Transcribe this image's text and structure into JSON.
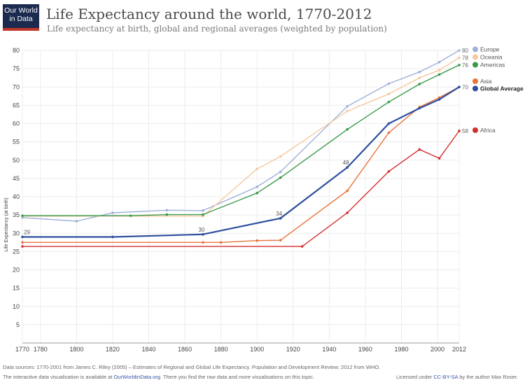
{
  "logo": {
    "line1": "Our World",
    "line2": "in Data"
  },
  "header": {
    "title": "Life Expectancy around the world, 1770-2012",
    "subtitle": "Life expectancy at birth, global and regional averages (weighted by population)"
  },
  "footer": {
    "line1": "Data sources: 1770-2001 from James C. Riley (2005) – Estimates of Regional and Global Life Expectancy. Population and Development Review; 2012 from WHO.",
    "line2_pre": "The interactive data visualisation is available at ",
    "line2_link": "OurWorldinData.org",
    "line2_post": ". There you find the raw data and more visualisations on this topic.",
    "license_pre": "Licensed under ",
    "license_link": "CC-BY-SA",
    "license_post": " by the author Max Roser."
  },
  "chart_data": {
    "type": "line",
    "title": "Life Expectancy around the world, 1770-2012",
    "subtitle": "Life expectancy at birth, global and regional averages (weighted by population)",
    "ylabel": "Life Expectancy (at birth)",
    "xlabel": "",
    "xlim": [
      1770,
      2012
    ],
    "ylim": [
      0,
      80
    ],
    "x_ticks": [
      1770,
      1780,
      1800,
      1820,
      1840,
      1860,
      1880,
      1900,
      1920,
      1940,
      1960,
      1980,
      2000,
      2012
    ],
    "y_ticks": [
      5,
      10,
      15,
      20,
      25,
      30,
      35,
      40,
      45,
      50,
      55,
      60,
      65,
      70,
      75,
      80
    ],
    "grid": true,
    "legend_position": "right",
    "series": [
      {
        "name": "Europe",
        "color": "#9fb0d9",
        "end_label": "80",
        "points": [
          [
            1770,
            34.3
          ],
          [
            1800,
            33.3
          ],
          [
            1820,
            35.6
          ],
          [
            1850,
            36.3
          ],
          [
            1870,
            36.2
          ],
          [
            1900,
            42.7
          ],
          [
            1913,
            46.8
          ],
          [
            1950,
            64.7
          ],
          [
            1973,
            70.9
          ],
          [
            1990,
            74.1
          ],
          [
            2001,
            76.8
          ],
          [
            2012,
            80
          ]
        ]
      },
      {
        "name": "Oceania",
        "color": "#f5c9a0",
        "end_label": "78",
        "points": [
          [
            1770,
            34.7
          ],
          [
            1870,
            34.7
          ],
          [
            1900,
            47.6
          ],
          [
            1913,
            51
          ],
          [
            1950,
            63.4
          ],
          [
            1973,
            68.1
          ],
          [
            1990,
            72.5
          ],
          [
            2001,
            74.6
          ],
          [
            2012,
            78
          ]
        ]
      },
      {
        "name": "Americas",
        "color": "#3a9a4a",
        "end_label": "76",
        "points": [
          [
            1770,
            34.8
          ],
          [
            1830,
            34.8
          ],
          [
            1850,
            35.1
          ],
          [
            1870,
            35.1
          ],
          [
            1900,
            41
          ],
          [
            1913,
            45.2
          ],
          [
            1950,
            58.4
          ],
          [
            1973,
            65.9
          ],
          [
            1990,
            70.8
          ],
          [
            2001,
            73.4
          ],
          [
            2012,
            76
          ]
        ]
      },
      {
        "name": "Asia",
        "color": "#e8743a",
        "end_label": "",
        "points": [
          [
            1770,
            27.5
          ],
          [
            1870,
            27.5
          ],
          [
            1880,
            27.5
          ],
          [
            1900,
            28
          ],
          [
            1913,
            28.1
          ],
          [
            1950,
            41.6
          ],
          [
            1973,
            57.5
          ],
          [
            1990,
            64.5
          ],
          [
            2001,
            67.1
          ],
          [
            2012,
            70
          ]
        ]
      },
      {
        "name": "Global Average",
        "color": "#2d4f9e",
        "end_label": "70",
        "points": [
          [
            1770,
            29
          ],
          [
            1820,
            29
          ],
          [
            1870,
            29.7
          ],
          [
            1913,
            34.1
          ],
          [
            1950,
            48
          ],
          [
            1973,
            60
          ],
          [
            1990,
            64.2
          ],
          [
            2001,
            66.6
          ],
          [
            2012,
            70
          ]
        ]
      },
      {
        "name": "Africa",
        "color": "#d32f2f",
        "end_label": "58",
        "points": [
          [
            1770,
            26.4
          ],
          [
            1925,
            26.4
          ],
          [
            1950,
            35.6
          ],
          [
            1973,
            46.9
          ],
          [
            1990,
            52.9
          ],
          [
            2001,
            50.5
          ],
          [
            2012,
            58
          ]
        ]
      }
    ],
    "annotations": [
      {
        "text": "29",
        "x": 1770,
        "y": 29
      },
      {
        "text": "30",
        "x": 1870,
        "y": 29.7
      },
      {
        "text": "34",
        "x": 1913,
        "y": 34.1
      },
      {
        "text": "48",
        "x": 1950,
        "y": 48
      }
    ]
  }
}
